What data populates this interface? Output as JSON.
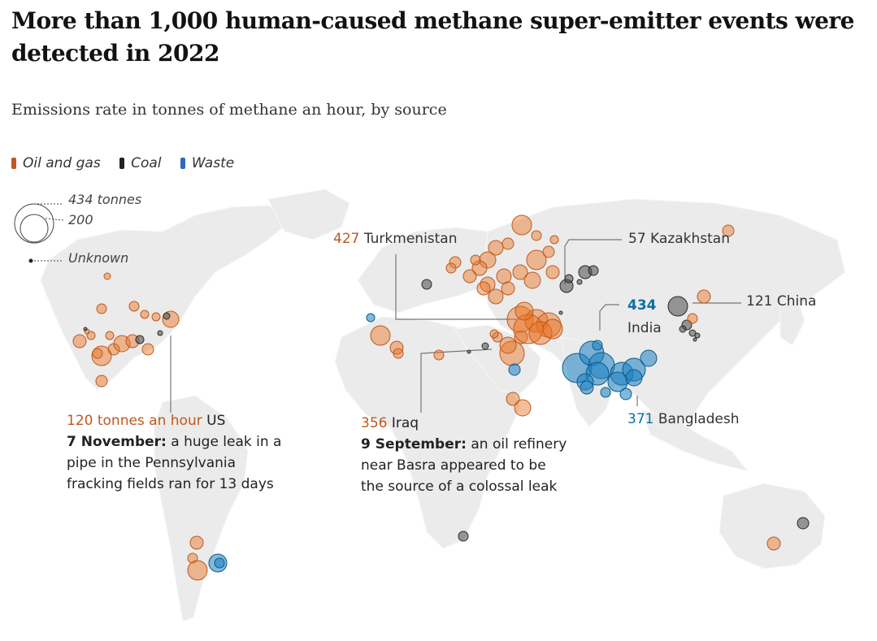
{
  "title": "More than 1,000 human-caused methane super-emitter events were detected in 2022",
  "subtitle": "Emissions rate in tonnes of methane an hour, by source",
  "colors": {
    "oil_and_gas": "#e8711f",
    "coal": "#4a4a4a",
    "waste": "#1a7fc1",
    "land": "#ececec"
  },
  "legend": [
    {
      "label": "Oil and gas",
      "color": "#c0581f"
    },
    {
      "label": "Coal",
      "color": "#222222"
    },
    {
      "label": "Waste",
      "color": "#2e6cb5"
    }
  ],
  "size_key": {
    "large": "434 tonnes",
    "medium": "200",
    "unknown": "Unknown"
  },
  "annotations": {
    "us": {
      "value": "120 tonnes an hour",
      "country": "US",
      "date": "7 November:",
      "text1": " a huge leak in a",
      "text2": "pipe in the Pennsylvania",
      "text3": "fracking fields ran for 13 days"
    },
    "iraq": {
      "value": "356",
      "country": "Iraq",
      "date": "9 September:",
      "text1": " an oil refinery",
      "text2": "near Basra appeared to be",
      "text3": "the source of a colossal leak"
    },
    "turkmenistan": {
      "value": "427",
      "country": "Turkmenistan"
    },
    "kazakhstan": {
      "value": "57",
      "country": "Kazakhstan"
    },
    "china": {
      "value": "121",
      "country": "China"
    },
    "india": {
      "value": "434",
      "country": "India"
    },
    "bangladesh": {
      "value": "371",
      "country": "Bangladesh"
    }
  },
  "chart_data": {
    "type": "scatter",
    "title": "More than 1,000 human-caused methane super-emitter events were detected in 2022",
    "subtitle": "Emissions rate in tonnes of methane an hour, by source",
    "series": [
      {
        "name": "Oil and gas",
        "color": "#e8711f"
      },
      {
        "name": "Coal",
        "color": "#4a4a4a"
      },
      {
        "name": "Waste",
        "color": "#1a7fc1"
      }
    ],
    "size_legend": [
      434,
      200
    ],
    "labelled_events": [
      {
        "label": "US",
        "value": 120,
        "series": "Oil and gas"
      },
      {
        "label": "Iraq",
        "value": 356,
        "series": "Oil and gas"
      },
      {
        "label": "Turkmenistan",
        "value": 427,
        "series": "Oil and gas"
      },
      {
        "label": "Kazakhstan",
        "value": 57,
        "series": "Coal"
      },
      {
        "label": "China",
        "value": 121,
        "series": "Coal"
      },
      {
        "label": "India",
        "value": 434,
        "series": "Waste"
      },
      {
        "label": "Bangladesh",
        "value": 371,
        "series": "Waste"
      }
    ]
  }
}
